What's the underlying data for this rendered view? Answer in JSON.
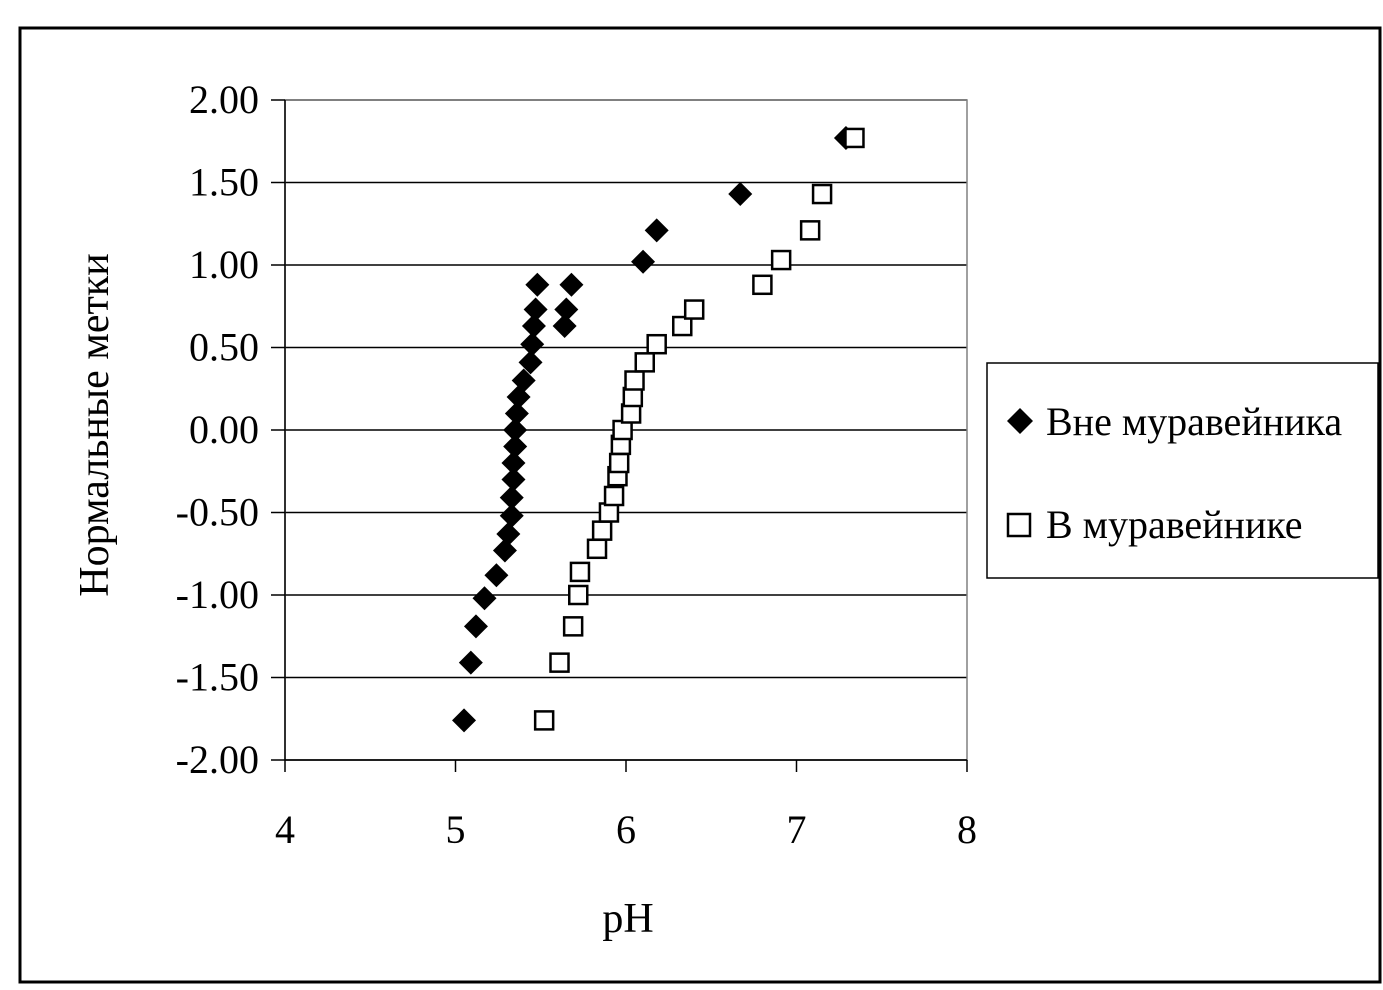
{
  "chart_data": {
    "type": "scatter",
    "xlabel": "pH",
    "ylabel": "Нормальные метки",
    "xlim": [
      4,
      8
    ],
    "ylim": [
      -2,
      2
    ],
    "x_ticks": [
      "4",
      "5",
      "6",
      "7",
      "8"
    ],
    "y_ticks": [
      "2.00",
      "1.50",
      "1.00",
      "0.50",
      "0.00",
      "-0.50",
      "-1.00",
      "-1.50",
      "-2.00"
    ],
    "grid": "horizontal",
    "legend_position": "right",
    "series": [
      {
        "name": "Вне муравейника",
        "marker": "diamond-filled",
        "color": "#000000",
        "x": [
          5.05,
          5.09,
          5.12,
          5.17,
          5.24,
          5.29,
          5.31,
          5.33,
          5.33,
          5.34,
          5.34,
          5.35,
          5.35,
          5.36,
          5.37,
          5.4,
          5.44,
          5.45,
          5.46,
          5.47,
          5.48,
          5.64,
          5.65,
          5.68,
          6.1,
          6.18,
          6.67,
          7.29
        ],
        "y": [
          -1.76,
          -1.41,
          -1.19,
          -1.02,
          -0.88,
          -0.73,
          -0.63,
          -0.52,
          -0.41,
          -0.3,
          -0.2,
          -0.1,
          0.0,
          0.1,
          0.2,
          0.3,
          0.41,
          0.52,
          0.63,
          0.73,
          0.88,
          0.63,
          0.73,
          0.88,
          1.02,
          1.21,
          1.43,
          1.77
        ]
      },
      {
        "name": "В муравейнике",
        "marker": "square-open",
        "color": "#000000",
        "x": [
          5.52,
          5.61,
          5.69,
          5.72,
          5.73,
          5.83,
          5.86,
          5.9,
          5.93,
          5.95,
          5.96,
          5.97,
          5.98,
          6.03,
          6.04,
          6.05,
          6.11,
          6.18,
          6.33,
          6.4,
          6.8,
          6.91,
          7.08,
          7.15,
          7.34
        ],
        "y": [
          -1.76,
          -1.41,
          -1.19,
          -1.0,
          -0.86,
          -0.72,
          -0.61,
          -0.5,
          -0.4,
          -0.28,
          -0.2,
          -0.09,
          0.0,
          0.1,
          0.2,
          0.3,
          0.41,
          0.52,
          0.63,
          0.73,
          0.88,
          1.03,
          1.21,
          1.43,
          1.77
        ]
      }
    ]
  }
}
